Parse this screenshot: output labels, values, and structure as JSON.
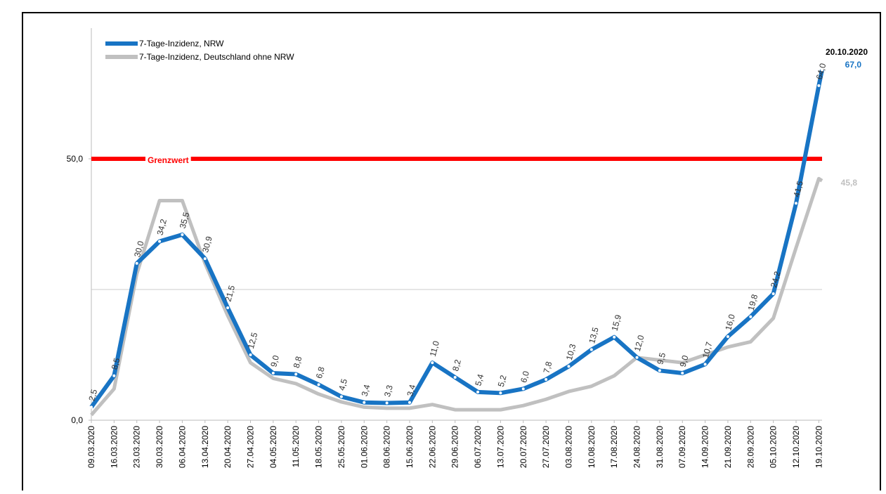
{
  "chart_data": {
    "type": "line",
    "categories": [
      "09.03.2020",
      "16.03.2020",
      "23.03.2020",
      "30.03.2020",
      "06.04.2020",
      "13.04.2020",
      "20.04.2020",
      "27.04.2020",
      "04.05.2020",
      "11.05.2020",
      "18.05.2020",
      "25.05.2020",
      "01.06.2020",
      "08.06.2020",
      "15.06.2020",
      "22.06.2020",
      "29.06.2020",
      "06.07.2020",
      "13.07.2020",
      "20.07.2020",
      "27.07.2020",
      "03.08.2020",
      "10.08.2020",
      "17.08.2020",
      "24.08.2020",
      "31.08.2020",
      "07.09.2020",
      "14.09.2020",
      "21.09.2020",
      "28.09.2020",
      "05.10.2020",
      "12.10.2020",
      "19.10.2020",
      "20.10.2020"
    ],
    "series": [
      {
        "name": "7-Tage-Inzidenz, NRW",
        "color": "#1874c4",
        "values": [
          2.5,
          8.5,
          30.0,
          34.2,
          35.5,
          30.9,
          21.5,
          12.5,
          9.0,
          8.8,
          6.8,
          4.5,
          3.4,
          3.3,
          3.4,
          11.0,
          8.2,
          5.4,
          5.2,
          6.0,
          7.8,
          10.3,
          13.5,
          15.9,
          12.0,
          9.5,
          9.0,
          10.7,
          16.0,
          19.8,
          24.2,
          41.5,
          64.0,
          67.0
        ],
        "value_labels": [
          "2,5",
          "8,5",
          "30,0",
          "34,2",
          "35,5",
          "30,9",
          "21,5",
          "12,5",
          "9,0",
          "8,8",
          "6,8",
          "4,5",
          "3,4",
          "3,3",
          "3,4",
          "11,0",
          "8,2",
          "5,4",
          "5,2",
          "6,0",
          "7,8",
          "10,3",
          "13,5",
          "15,9",
          "12,0",
          "9,5",
          "9,0",
          "10,7",
          "16,0",
          "19,8",
          "24,2",
          "41,5",
          "64,0",
          "67,0"
        ]
      },
      {
        "name": "7-Tage-Inzidenz, Deutschland ohne NRW",
        "color": "#c0c0c0",
        "values": [
          1.0,
          6.0,
          28.0,
          42.0,
          42.0,
          30.0,
          20.0,
          11.0,
          8.0,
          7.0,
          5.0,
          3.5,
          2.5,
          2.3,
          2.3,
          3.0,
          2.0,
          2.0,
          2.0,
          2.8,
          4.0,
          5.5,
          6.5,
          8.5,
          12.0,
          11.5,
          11.0,
          12.5,
          14.0,
          15.0,
          19.5,
          33.0,
          46.2,
          45.8
        ],
        "end_label": "45,8"
      }
    ],
    "ylim": [
      0,
      75
    ],
    "yticks": [
      {
        "value": 0,
        "label": "0,0"
      },
      {
        "value": 50,
        "label": "50,0"
      }
    ],
    "grid_values": [
      25
    ],
    "threshold": {
      "value": 50,
      "label": "Grenzwert",
      "color": "#ff0000"
    },
    "legend": "upper left"
  }
}
